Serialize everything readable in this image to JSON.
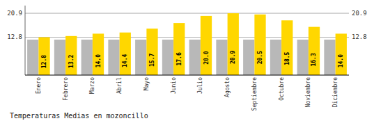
{
  "chart_data": {
    "type": "bar",
    "title": "Temperaturas Medias en mozoncillo",
    "categories": [
      "Enero",
      "Febrero",
      "Marzo",
      "Abril",
      "Mayo",
      "Junio",
      "Julio",
      "Agosto",
      "Septiembre",
      "Octubre",
      "Noviembre",
      "Diciembre"
    ],
    "series": [
      {
        "color": "#B8B8B8",
        "values": [
          12.0,
          12.0,
          12.0,
          12.0,
          12.0,
          12.0,
          12.0,
          12.0,
          12.0,
          12.0,
          12.0,
          12.0
        ]
      },
      {
        "color": "#FFD700",
        "values": [
          12.8,
          13.2,
          14.0,
          14.4,
          15.7,
          17.6,
          20.0,
          20.9,
          20.5,
          18.5,
          16.3,
          14.0
        ],
        "value_labels": [
          "12.8",
          "13.2",
          "14.0",
          "14.4",
          "15.7",
          "17.6",
          "20.0",
          "20.9",
          "20.5",
          "18.5",
          "16.3",
          "14.0"
        ],
        "data_labels": true
      }
    ],
    "ylim": [
      0,
      23.5
    ],
    "yticks": [
      12.8,
      20.9
    ],
    "y2lim": [
      0,
      23.5
    ],
    "y2ticks": [
      12.8,
      20.9
    ],
    "grid": true
  }
}
